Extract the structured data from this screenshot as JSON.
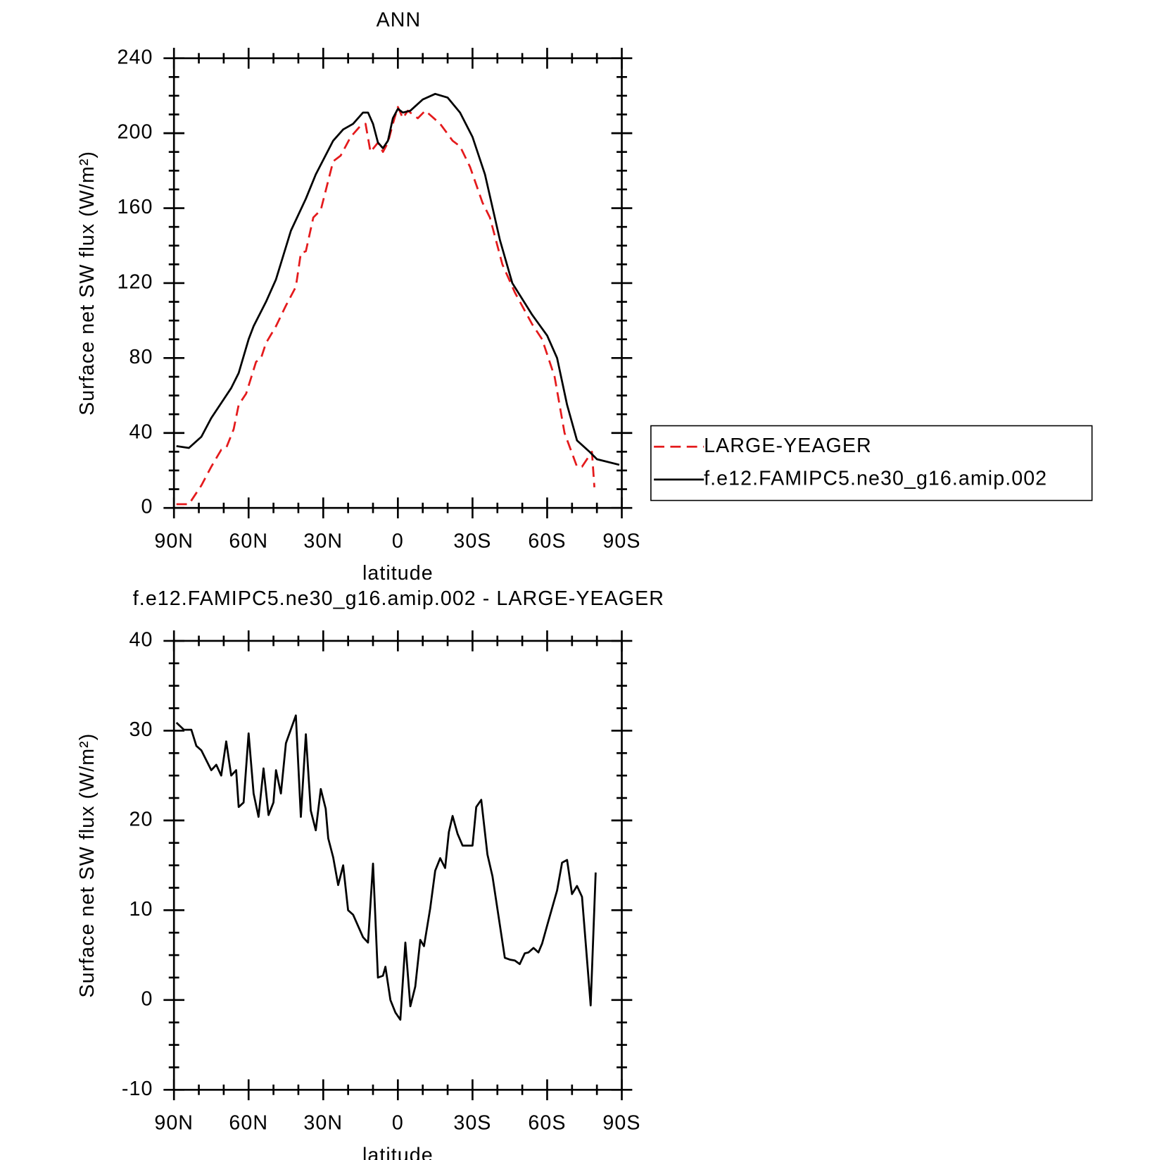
{
  "chart_data": [
    {
      "type": "line",
      "title": "ANN",
      "xlabel": "latitude",
      "ylabel": "Surface net SW flux (W/m²)",
      "xlim": [
        90,
        -90
      ],
      "xticks": [
        {
          "value": 90,
          "label": "90N"
        },
        {
          "value": 60,
          "label": "60N"
        },
        {
          "value": 30,
          "label": "30N"
        },
        0,
        {
          "value": -30,
          "label": "30S"
        },
        {
          "value": -60,
          "label": "60S"
        },
        {
          "value": -90,
          "label": "90S"
        }
      ],
      "ylim": [
        0,
        240
      ],
      "yticks": [
        0,
        40,
        80,
        120,
        160,
        200,
        240
      ],
      "legend": "right",
      "series": [
        {
          "name": "LARGE-YEAGER",
          "color": "#e41a1c",
          "dash": true,
          "x": [
            89,
            84,
            79,
            75,
            71,
            69,
            66,
            64,
            61,
            57,
            55,
            53,
            49,
            45,
            41,
            39,
            37,
            34,
            31,
            26,
            23,
            19,
            15,
            13,
            11,
            8,
            6,
            4,
            2,
            0,
            -2,
            -4,
            -8,
            -11,
            -17,
            -22,
            -25,
            -29,
            -34,
            -37,
            -42,
            -47,
            -54,
            -58,
            -63,
            -67,
            -72,
            -74,
            -78,
            -79
          ],
          "values": [
            2,
            2,
            12,
            22,
            31,
            32,
            42,
            55,
            61,
            78,
            80,
            88,
            97,
            108,
            118,
            136,
            137,
            155,
            159,
            185,
            188,
            198,
            204,
            205,
            190,
            195,
            190,
            195,
            205,
            214,
            208,
            212,
            208,
            212,
            205,
            196,
            193,
            182,
            163,
            155,
            130,
            115,
            98,
            90,
            70,
            40,
            22,
            22,
            30,
            11
          ]
        },
        {
          "name": "f.e12.FAMIPC5.ne30_g16.amip.002",
          "color": "#000000",
          "dash": false,
          "x": [
            89,
            84,
            79,
            75,
            70,
            67,
            64,
            60,
            58,
            53,
            49,
            43,
            37,
            33,
            26,
            22,
            18,
            14,
            12,
            10,
            8,
            6,
            4,
            2,
            0,
            -2,
            -5,
            -10,
            -15,
            -20,
            -25,
            -30,
            -35,
            -41,
            -46,
            -54,
            -60,
            -64,
            -68,
            -72,
            -77,
            -80,
            -89
          ],
          "values": [
            33,
            32,
            38,
            48,
            58,
            64,
            72,
            90,
            97,
            110,
            122,
            148,
            165,
            178,
            196,
            202,
            205,
            211,
            211,
            205,
            195,
            192,
            196,
            208,
            213,
            211,
            212,
            218,
            221,
            219,
            211,
            198,
            178,
            143,
            120,
            103,
            92,
            80,
            55,
            36,
            30,
            26,
            23
          ]
        }
      ]
    },
    {
      "type": "line",
      "title": "f.e12.FAMIPC5.ne30_g16.amip.002 - LARGE-YEAGER",
      "xlabel": "latitude",
      "ylabel": "Surface net SW flux (W/m²)",
      "xlim": [
        90,
        -90
      ],
      "xticks": [
        {
          "value": 90,
          "label": "90N"
        },
        {
          "value": 60,
          "label": "60N"
        },
        {
          "value": 30,
          "label": "30N"
        },
        0,
        {
          "value": -30,
          "label": "30S"
        },
        {
          "value": -60,
          "label": "60S"
        },
        {
          "value": -90,
          "label": "90S"
        }
      ],
      "ylim": [
        -10,
        40
      ],
      "yticks": [
        -10,
        0,
        10,
        20,
        30,
        40
      ],
      "series": [
        {
          "color": "#000000",
          "dash": false,
          "x": [
            89,
            86,
            83,
            81,
            79,
            75,
            73,
            71,
            69,
            67,
            65,
            64,
            62,
            60,
            58,
            56,
            54,
            52,
            50,
            49,
            47,
            45,
            41,
            39,
            37,
            35,
            33,
            31,
            29,
            28,
            26,
            24,
            22,
            20,
            18,
            14,
            12,
            10,
            8,
            6,
            5,
            3,
            1,
            -1,
            -3,
            -5,
            -7,
            -9,
            -10.5,
            -13,
            -15,
            -17,
            -19,
            -20.5,
            -22,
            -24,
            -26,
            -30,
            -31.5,
            -33.5,
            -36,
            -38,
            -43,
            -45,
            -47,
            -49,
            -51,
            -52.5,
            -54.5,
            -56.5,
            -58,
            -60,
            -64,
            -66,
            -68,
            -70,
            -72,
            -74,
            -77.5,
            -79.5
          ],
          "values": [
            30.9,
            30.1,
            30.1,
            28.3,
            27.8,
            25.6,
            26.2,
            25.0,
            28.8,
            25.0,
            25.6,
            21.5,
            22.0,
            29.7,
            23.0,
            20.4,
            25.8,
            20.6,
            22.0,
            25.6,
            23.0,
            28.6,
            31.7,
            20.4,
            29.6,
            21.1,
            18.9,
            23.5,
            21.3,
            18.0,
            15.9,
            12.8,
            15.0,
            10.0,
            9.5,
            7.0,
            6.4,
            15.2,
            2.5,
            2.7,
            3.7,
            0.0,
            -1.4,
            -2.2,
            6.4,
            -0.7,
            1.5,
            6.7,
            6.0,
            10.2,
            14.4,
            15.8,
            14.7,
            18.7,
            20.5,
            18.5,
            17.2,
            17.2,
            21.5,
            22.3,
            16.2,
            13.8,
            4.7,
            4.5,
            4.4,
            4.0,
            5.2,
            5.3,
            5.8,
            5.3,
            6.3,
            8.3,
            12.2,
            15.3,
            15.6,
            11.8,
            12.7,
            11.5,
            -0.6,
            14.2
          ]
        }
      ]
    }
  ]
}
